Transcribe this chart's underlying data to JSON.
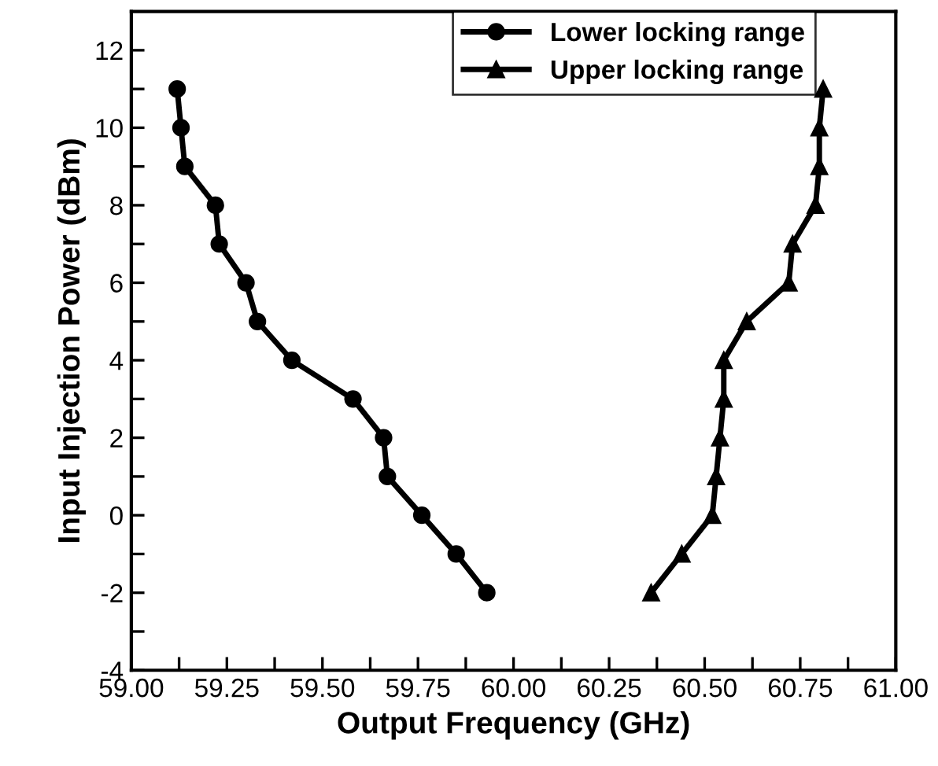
{
  "chart_data": {
    "type": "line",
    "xlabel": "Output Frequency (GHz)",
    "ylabel": "Input Injection Power (dBm)",
    "series": [
      {
        "name": "Lower locking range",
        "color": "#000000",
        "marker": "circle",
        "x": [
          59.12,
          59.13,
          59.14,
          59.22,
          59.23,
          59.3,
          59.33,
          59.42,
          59.58,
          59.66,
          59.67,
          59.76,
          59.85,
          59.93
        ],
        "values": [
          11,
          10,
          9,
          8,
          7,
          6,
          5,
          4,
          3,
          2,
          1,
          0,
          -1,
          -2
        ]
      },
      {
        "name": "Upper locking range",
        "color": "#000000",
        "marker": "triangle",
        "x": [
          60.36,
          60.44,
          60.52,
          60.53,
          60.54,
          60.55,
          60.55,
          60.61,
          60.72,
          60.73,
          60.79,
          60.8,
          60.8,
          60.81
        ],
        "values": [
          -2,
          -1,
          0,
          1,
          2,
          3,
          4,
          5,
          6,
          7,
          8,
          9,
          10,
          11
        ]
      }
    ],
    "xlim": [
      59.0,
      61.0
    ],
    "xticks": [
      {
        "value": 59.0,
        "label": "59.00"
      },
      {
        "value": 59.125,
        "label": null
      },
      {
        "value": 59.25,
        "label": "59.25"
      },
      {
        "value": 59.375,
        "label": null
      },
      {
        "value": 59.5,
        "label": "59.50"
      },
      {
        "value": 59.625,
        "label": null
      },
      {
        "value": 59.75,
        "label": "59.75"
      },
      {
        "value": 59.875,
        "label": null
      },
      {
        "value": 60.0,
        "label": "60.00"
      },
      {
        "value": 60.125,
        "label": null
      },
      {
        "value": 60.25,
        "label": "60.25"
      },
      {
        "value": 60.375,
        "label": null
      },
      {
        "value": 60.5,
        "label": "60.50"
      },
      {
        "value": 60.625,
        "label": null
      },
      {
        "value": 60.75,
        "label": "60.75"
      },
      {
        "value": 60.875,
        "label": null
      },
      {
        "value": 61.0,
        "label": "61.00"
      }
    ],
    "ylim": [
      -4,
      13
    ],
    "yticks": [
      -4,
      {
        "value": -3,
        "label": null
      },
      -2,
      {
        "value": -1,
        "label": null
      },
      0,
      {
        "value": 1,
        "label": null
      },
      2,
      {
        "value": 3,
        "label": null
      },
      4,
      {
        "value": 5,
        "label": null
      },
      6,
      {
        "value": 7,
        "label": null
      },
      8,
      {
        "value": 9,
        "label": null
      },
      10,
      {
        "value": 11,
        "label": null
      },
      12
    ],
    "grid": false,
    "legend": "top right",
    "line_style": "solid"
  }
}
